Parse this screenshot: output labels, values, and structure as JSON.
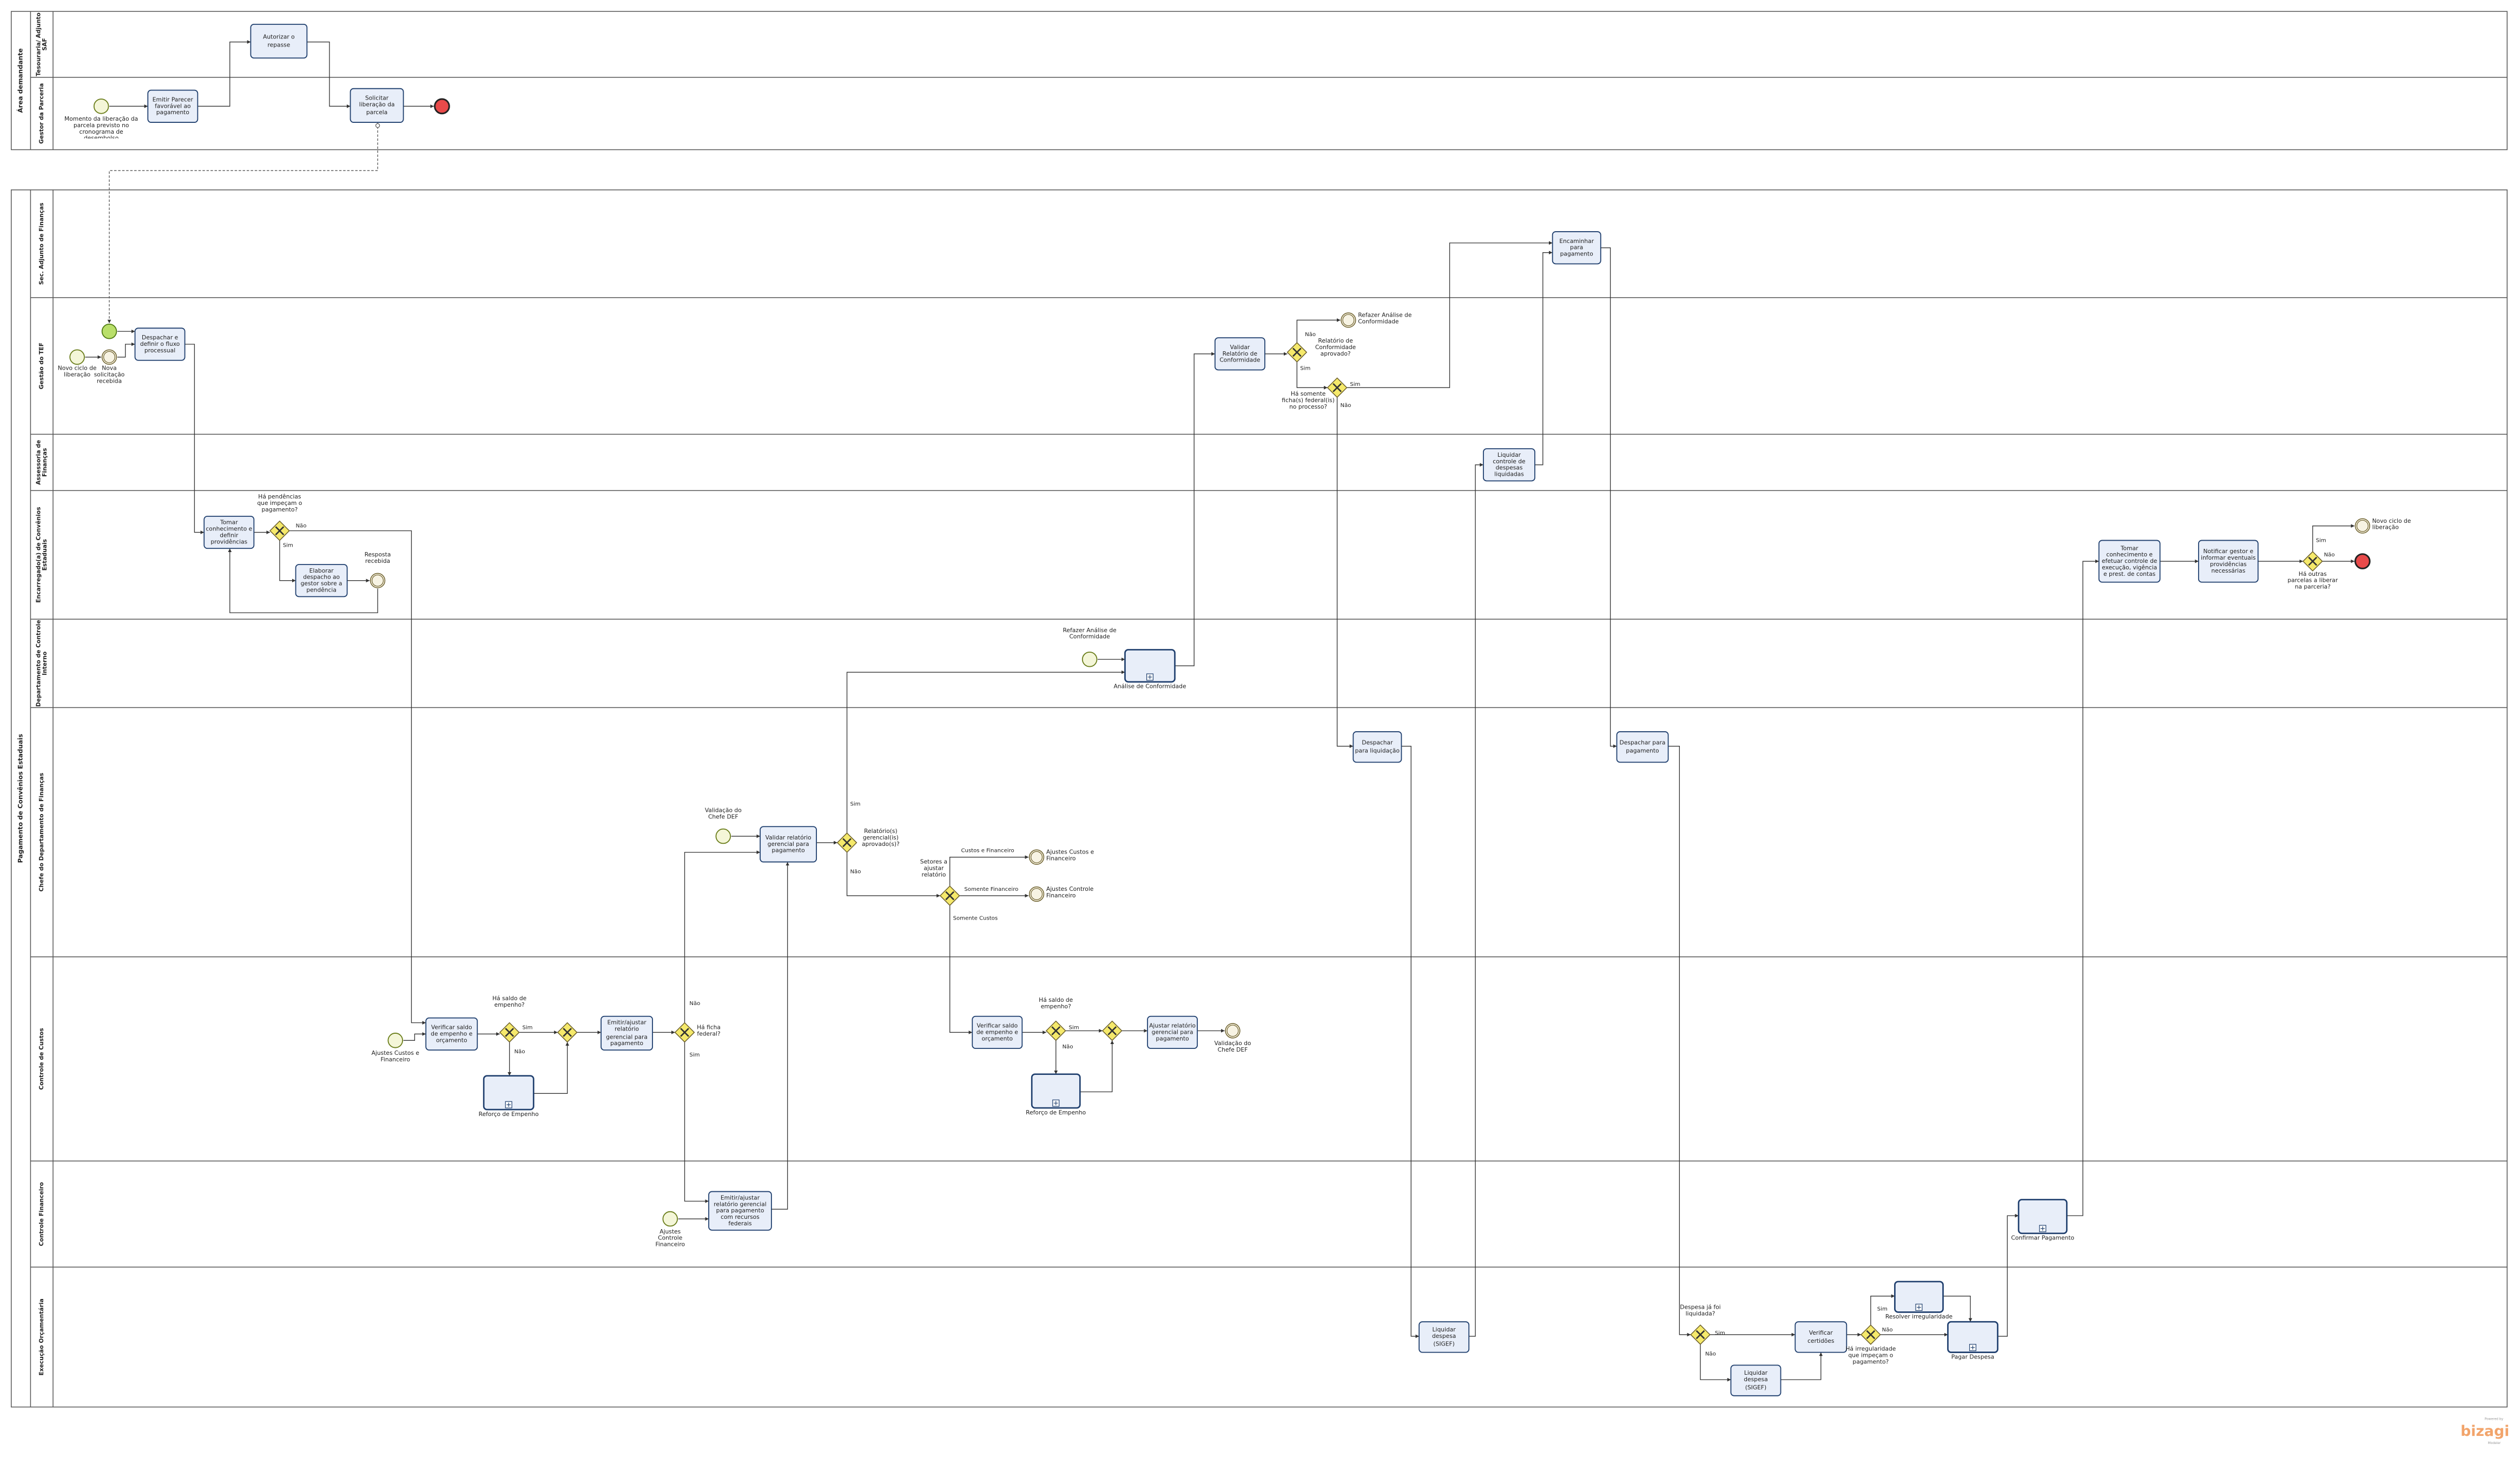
{
  "pools": [
    {
      "title": "Área demandante",
      "lanes": [
        "Tesouraria/ Adjunto SAF",
        "Gestor da Parceria"
      ]
    },
    {
      "title": "Pagamento de Convênios Estaduais",
      "lanes": [
        "Sec. Adjunto de Finanças",
        "Gestão do TEF",
        "Assessoria de Finanças",
        "Encarregado(a) de Convênios Estaduais",
        "Departamento de Controle Interno",
        "Chefe do Departamento de Finanças",
        "Controle de Custos",
        "Controle Financeiro",
        "Execução Orçamentária"
      ]
    }
  ],
  "tasks": [
    "Emitir Parecer favorável ao pagamento",
    "Autorizar o repasse",
    "Solicitar liberação da parcela",
    "Despachar e definir o fluxo processual",
    "Validar Relatório de Conformidade",
    "Encaminhar para pagamento",
    "Liquidar controle de despesas liquidadas",
    "Tomar conhecimento e definir providências",
    "Elaborar despacho ao gestor sobre a pendência",
    "Tomar conhecimento e efetuar controle de execução, vigência e prest. de contas",
    "Notificar gestor e informar eventuais providências necessárias",
    "Análise de Conformidade",
    "Validar relatório gerencial para pagamento",
    "Despachar para liquidação",
    "Despachar para pagamento",
    "Verificar saldo de empenho e orçamento",
    "Reforço de Empenho",
    "Emitir/ajustar relatório gerencial para pagamento",
    "Verificar saldo de empenho e orçamento",
    "Reforço de Empenho",
    "Ajustar relatório gerencial para pagamento",
    "Emitir/ajustar relatório gerencial para pagamento com recursos federais",
    "Confirmar Pagamento",
    "Liquidar despesa (SIGEF)",
    "Liquidar despesa (SIGEF)",
    "Verificar certidões",
    "Resolver irregularidade",
    "Pagar Despesa"
  ],
  "events": [
    "Momento da liberação da parcela previsto no cronograma de desembolso",
    "Novo ciclo de liberação",
    "Nova solicitação recebida",
    "Refazer Análise de Conformidade",
    "Resposta recebida",
    "Novo ciclo de liberação",
    "Refazer Análise de Conformidade",
    "Validação do Chefe DEF",
    "Ajustes Custos e Financeiro",
    "Ajustes Controle Financeiro",
    "Ajustes Custos e Financeiro",
    "Validação do Chefe DEF",
    "Ajustes Controle Financeiro"
  ],
  "gateways": [
    "Relatório de Conformidade aprovado?",
    "Há somente ficha(s) federal(is) no processo?",
    "Há pendências que impeçam o pagamento?",
    "Há outras parcelas a liberar na parceria?",
    "Relatório(s) gerencial(is) aprovado(s)?",
    "Setores a ajustar relatório",
    "Há saldo de empenho?",
    "Há ficha federal?",
    "Há saldo de empenho?",
    "Despesa já foi liquidada?",
    "Há irregularidade que impeçam o pagamento?"
  ],
  "edge_labels": [
    "Não",
    "Sim",
    "Sim",
    "Não",
    "Não",
    "Sim",
    "Sim",
    "Não",
    "Sim",
    "Não",
    "Custos e Financeiro",
    "Somente Financeiro",
    "Somente Custos",
    "Sim",
    "Não",
    "Não",
    "Sim",
    "Sim",
    "Não",
    "Sim",
    "Não",
    "Sim",
    "Não"
  ],
  "logo": {
    "prefix": "Powered by",
    "name": "bizagi",
    "suffix": "Modeler"
  }
}
